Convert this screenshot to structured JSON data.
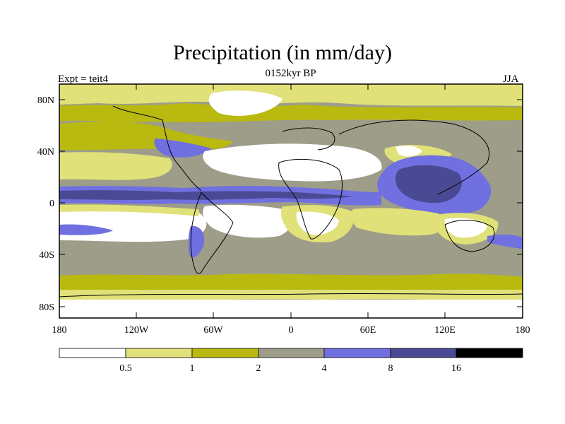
{
  "title": "Precipitation (in mm/day)",
  "subtitle": "0152kyr BP",
  "experiment_label": "Expt = teit4",
  "season_label": "JJA",
  "axes": {
    "lat_ticks": [
      "80N",
      "40N",
      "0",
      "40S",
      "80S"
    ],
    "lon_ticks": [
      "180",
      "120W",
      "60W",
      "0",
      "60E",
      "120E",
      "180"
    ]
  },
  "colorbar": {
    "thresholds": [
      "0.5",
      "1",
      "2",
      "4",
      "8",
      "16"
    ],
    "colors": [
      "#ffffff",
      "#e1e179",
      "#b9b910",
      "#9d9d89",
      "#7070e0",
      "#4a4a94",
      "#000000"
    ]
  },
  "chart_data": {
    "type": "heatmap",
    "title": "Precipitation (in mm/day)",
    "subtitle": "0152kyr BP",
    "variable": "Precipitation",
    "units": "mm/day",
    "season": "JJA",
    "experiment": "teit4",
    "x_range_deg": [
      -180,
      180
    ],
    "y_range_deg": [
      -90,
      90
    ],
    "levels": [
      0.5,
      1,
      2,
      4,
      8,
      16
    ]
  }
}
